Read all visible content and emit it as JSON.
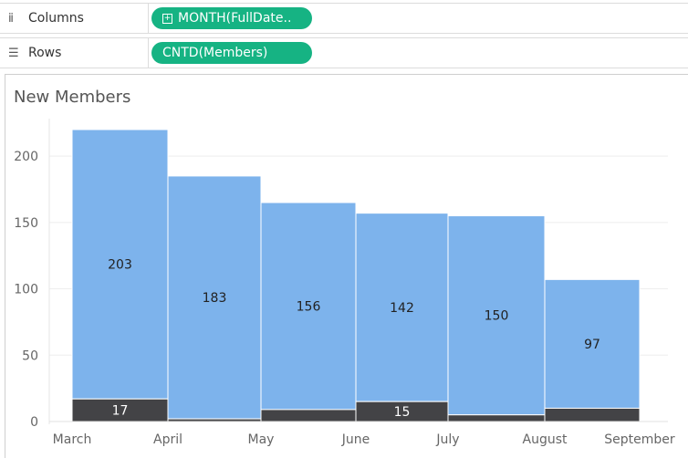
{
  "shelves": {
    "columns": {
      "label": "Columns",
      "icon": "columns-icon",
      "pill": "MONTH(FullDate.."
    },
    "rows": {
      "label": "Rows",
      "icon": "rows-icon",
      "pill": "CNTD(Members)"
    }
  },
  "colors": {
    "pill": "#16b383",
    "new": "#7db3ec",
    "returning": "#434346"
  },
  "chart_data": {
    "type": "bar",
    "title": "New Members",
    "categories": [
      "March",
      "April",
      "May",
      "June",
      "July",
      "August",
      "September"
    ],
    "x_tick_labels": [
      "March",
      "April",
      "May",
      "June",
      "July",
      "August",
      "September"
    ],
    "ylim": [
      0,
      220
    ],
    "y_ticks": [
      0,
      50,
      100,
      150,
      200
    ],
    "grid": true,
    "bars": [
      {
        "start": "March",
        "end": "April",
        "light": 203,
        "dark": 17,
        "light_label": "203",
        "dark_label": "17"
      },
      {
        "start": "April",
        "end": "May",
        "light": 183,
        "dark": 2,
        "light_label": "183",
        "dark_label": ""
      },
      {
        "start": "May",
        "end": "June",
        "light": 156,
        "dark": 9,
        "light_label": "156",
        "dark_label": ""
      },
      {
        "start": "June",
        "end": "July",
        "light": 142,
        "dark": 15,
        "light_label": "142",
        "dark_label": "15"
      },
      {
        "start": "July",
        "end": "August",
        "light": 150,
        "dark": 5,
        "light_label": "150",
        "dark_label": ""
      },
      {
        "start": "August",
        "end": "September",
        "light": 97,
        "dark": 10,
        "light_label": "97",
        "dark_label": ""
      }
    ]
  }
}
